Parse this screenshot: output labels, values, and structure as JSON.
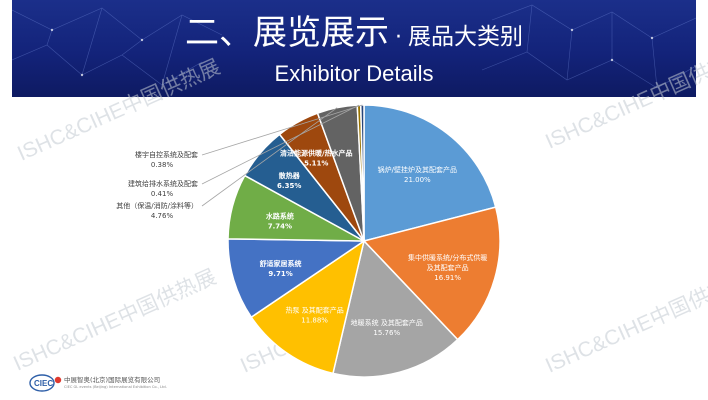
{
  "header": {
    "title_main": "二、展览展示",
    "title_dot": "·",
    "title_sub": "展品大类别",
    "title_en": "Exhibitor Details"
  },
  "watermark": "ISHC&CIHE中国供热展",
  "footer": {
    "company_cn": "中展智奥(北京)国际展览有限公司",
    "company_en": "CIEC GL events (Beijing) International Exhibition Co., Ltd."
  },
  "colors": {
    "header_bg": "#13237a",
    "accent": "#e03a2f"
  },
  "chart_data": {
    "type": "pie",
    "title": "",
    "start_angle_deg": 0,
    "direction": "clockwise",
    "slices": [
      {
        "label": "锅炉/壁挂炉及其配套产品",
        "value": 21.0,
        "display": "21.00%",
        "color": "#5b9bd5"
      },
      {
        "label": "集中供暖系统/分布式供暖及其配套产品",
        "value": 16.91,
        "display": "16.91%",
        "color": "#ed7d31"
      },
      {
        "label": "地暖系统 及其配套产品",
        "value": 15.76,
        "display": "15.76%",
        "color": "#a5a5a5"
      },
      {
        "label": "热泵 及其配套产品",
        "value": 11.88,
        "display": "11.88%",
        "color": "#ffc000"
      },
      {
        "label": "舒适家居系统",
        "value": 9.71,
        "display": "9.71%",
        "color": "#4472c4"
      },
      {
        "label": "水路系统",
        "value": 7.74,
        "display": "7.74%",
        "color": "#70ad47"
      },
      {
        "label": "散热器",
        "value": 6.35,
        "display": "6.35%",
        "color": "#255e91"
      },
      {
        "label": "清洁能源供暖/热水产品",
        "value": 5.11,
        "display": "5.11%",
        "color": "#9e480e"
      },
      {
        "label": "其他（保温/消防/涂料等）",
        "value": 4.76,
        "display": "4.76%",
        "color": "#636363"
      },
      {
        "label": "建筑给排水系统及配套",
        "value": 0.41,
        "display": "0.41%",
        "color": "#997300"
      },
      {
        "label": "楼宇自控系统及配套",
        "value": 0.38,
        "display": "0.38%",
        "color": "#264478"
      }
    ]
  }
}
